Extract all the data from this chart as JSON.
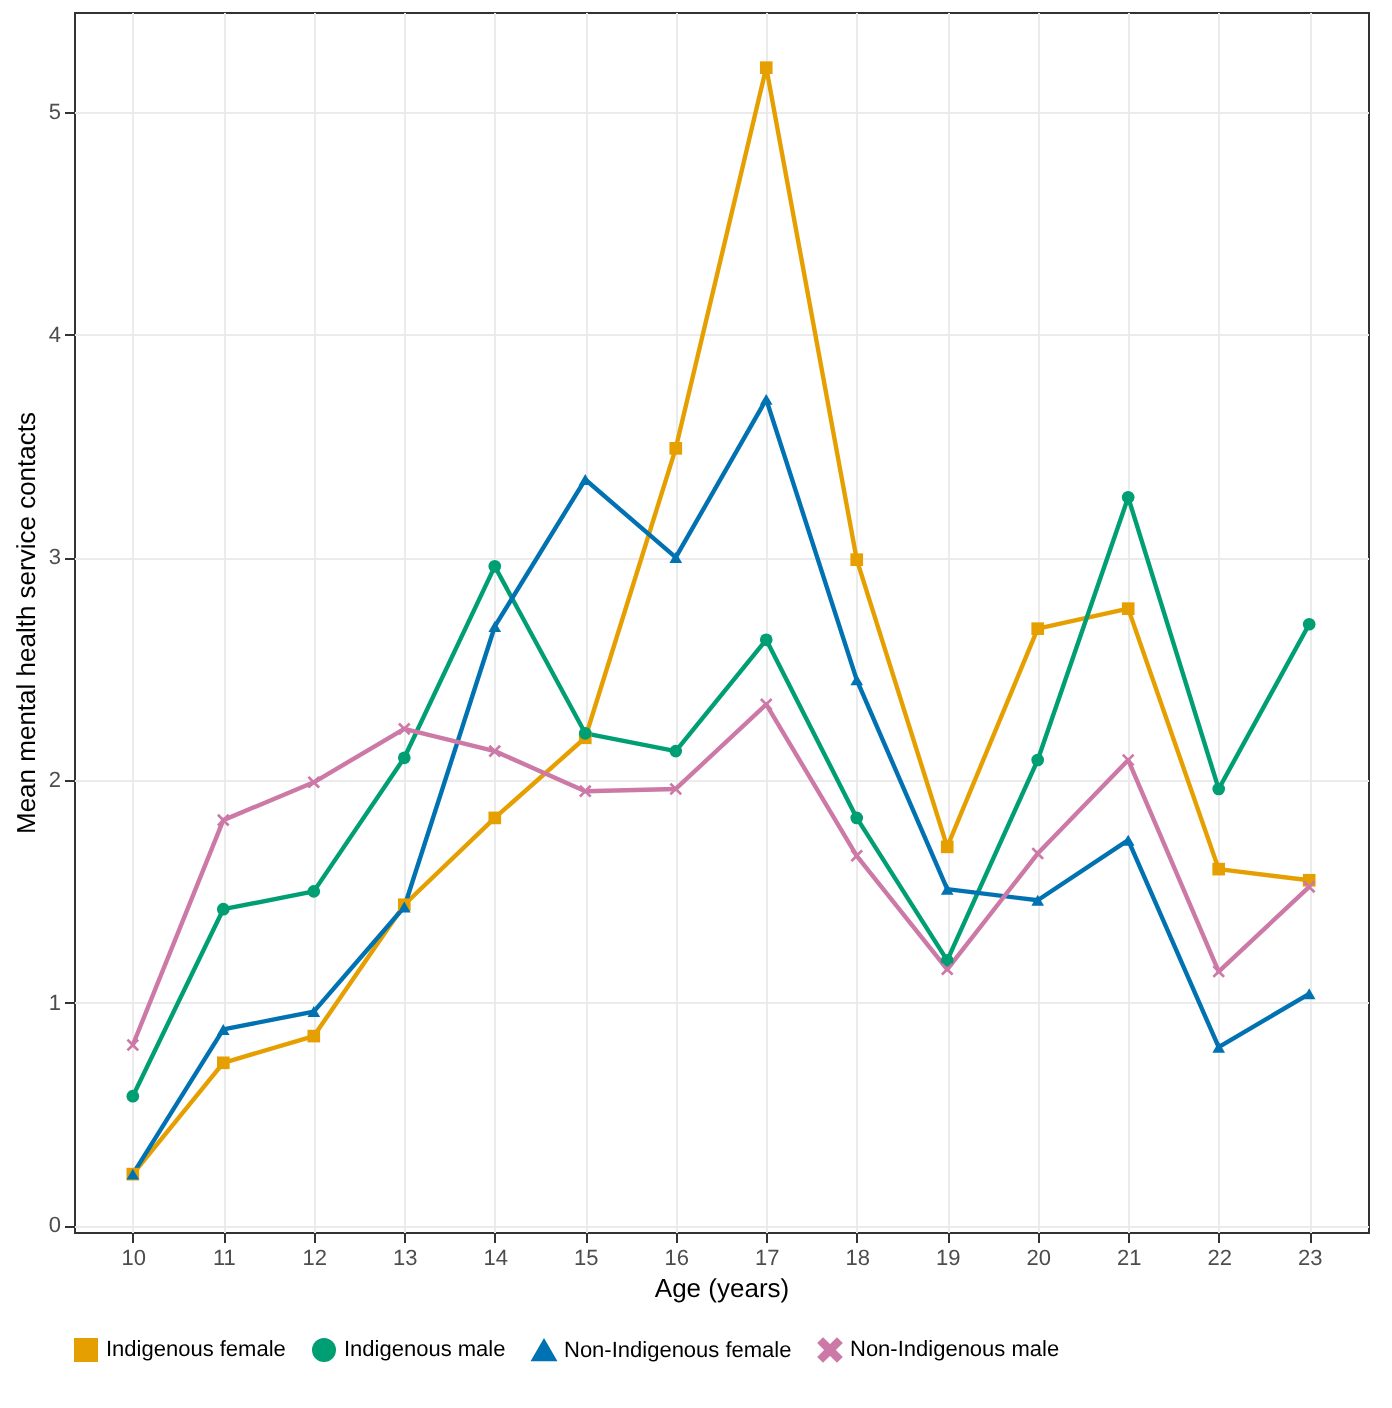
{
  "chart_data": {
    "type": "line",
    "xlabel": "Age (years)",
    "ylabel": "Mean mental health service contacts",
    "x": [
      10,
      11,
      12,
      13,
      14,
      15,
      16,
      17,
      18,
      19,
      20,
      21,
      22,
      23
    ],
    "xlim": [
      9.35,
      23.65
    ],
    "xticks": [
      10,
      11,
      12,
      13,
      14,
      15,
      16,
      17,
      18,
      19,
      20,
      21,
      22,
      23
    ],
    "ylim": [
      -0.03,
      5.45
    ],
    "yticks": [
      0,
      1,
      2,
      3,
      4,
      5
    ],
    "grid": true,
    "legend": "bottom",
    "line_style": "solid",
    "series": [
      {
        "name": "Indigenous female",
        "color": "#e69f00",
        "marker": "square",
        "values": [
          0.23,
          0.73,
          0.85,
          1.44,
          1.83,
          2.19,
          3.49,
          5.2,
          2.99,
          1.7,
          2.68,
          2.77,
          1.6,
          1.55
        ]
      },
      {
        "name": "Indigenous male",
        "color": "#009e73",
        "marker": "circle",
        "values": [
          0.58,
          1.42,
          1.5,
          2.1,
          2.96,
          2.21,
          2.13,
          2.63,
          1.83,
          1.19,
          2.09,
          3.27,
          1.96,
          2.7
        ]
      },
      {
        "name": "Non-Indigenous female",
        "color": "#0072b2",
        "marker": "triangle",
        "values": [
          0.23,
          0.88,
          0.96,
          1.43,
          2.69,
          3.35,
          3.0,
          3.71,
          2.45,
          1.51,
          1.46,
          1.73,
          0.8,
          1.04
        ]
      },
      {
        "name": "Non-Indigenous male",
        "color": "#cc79a7",
        "marker": "cross",
        "values": [
          0.81,
          1.82,
          1.99,
          2.23,
          2.13,
          1.95,
          1.96,
          2.34,
          1.66,
          1.15,
          1.67,
          2.09,
          1.14,
          1.52
        ]
      }
    ]
  }
}
